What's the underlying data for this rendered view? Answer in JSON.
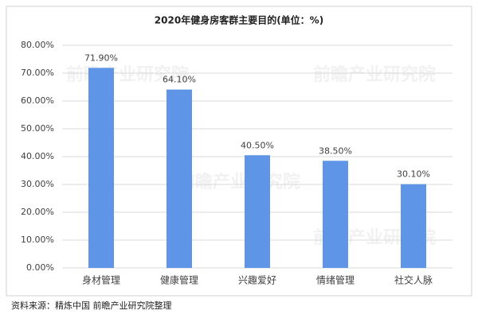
{
  "chart_data": {
    "type": "bar",
    "title": "2020年健身房客群主要目的(单位：%)",
    "categories": [
      "身材管理",
      "健康管理",
      "兴趣爱好",
      "情绪管理",
      "社交人脉"
    ],
    "values": [
      71.9,
      64.1,
      40.5,
      38.5,
      30.1
    ],
    "value_labels": [
      "71.90%",
      "64.10%",
      "40.50%",
      "38.50%",
      "30.10%"
    ],
    "color": "#5e95e6",
    "ylim": [
      0,
      80
    ],
    "yticks": [
      {
        "value": 0,
        "label": "0.00%"
      },
      {
        "value": 10,
        "label": "10.00%"
      },
      {
        "value": 20,
        "label": "20.00%"
      },
      {
        "value": 30,
        "label": "30.00%"
      },
      {
        "value": 40,
        "label": "40.00%"
      },
      {
        "value": 50,
        "label": "50.00%"
      },
      {
        "value": 60,
        "label": "60.00%"
      },
      {
        "value": 70,
        "label": "70.00%"
      },
      {
        "value": 80,
        "label": "80.00%"
      }
    ],
    "grid": true,
    "source": "资料来源：精炼中国 前瞻产业研究院整理",
    "watermark": "前瞻产业研究院"
  }
}
